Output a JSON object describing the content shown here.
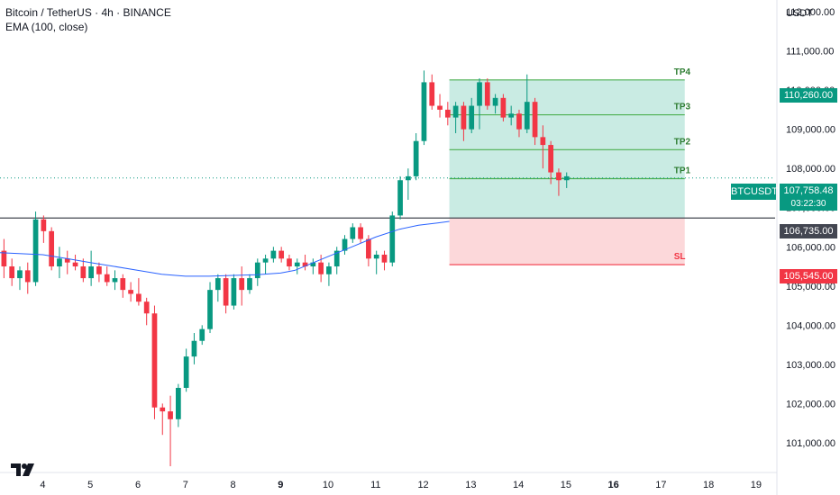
{
  "legend": {
    "title": "Bitcoin / TetherUS · 4h · BINANCE",
    "indicator": "EMA (100, close)"
  },
  "axis": {
    "currency": "USDT"
  },
  "colors": {
    "up": "#089981",
    "down": "#f23645",
    "ema": "#2962ff",
    "target_zone": "#c9ebe3",
    "stop_zone": "#fcd8da",
    "target_line": "#4caf50",
    "stop_line": "#f23645",
    "level_line": "#434651"
  },
  "chart_data": {
    "type": "candlestick",
    "y_ticks": [
      "101,000.00",
      "102,000.00",
      "103,000.00",
      "104,000.00",
      "105,000.00",
      "106,000.00",
      "107,000.00",
      "108,000.00",
      "109,000.00",
      "110,000.00",
      "111,000.00",
      "112,000.00"
    ],
    "y_tick_values": [
      101000,
      102000,
      103000,
      104000,
      105000,
      106000,
      107000,
      108000,
      109000,
      110000,
      111000,
      112000
    ],
    "ylim": [
      100240,
      112300
    ],
    "x_ticks": [
      "4",
      "5",
      "6",
      "7",
      "8",
      "9",
      "10",
      "11",
      "12",
      "13",
      "14",
      "15",
      "16",
      "17",
      "18",
      "19"
    ],
    "x_bold_ticks": [
      "9",
      "16"
    ],
    "x_start_day": 3.1,
    "x_end_day": 19.4,
    "candles_per_day": 6,
    "candles": [
      {
        "o": 105900,
        "h": 106200,
        "l": 105200,
        "c": 105500
      },
      {
        "o": 105500,
        "h": 105700,
        "l": 105000,
        "c": 105200
      },
      {
        "o": 105200,
        "h": 105500,
        "l": 104900,
        "c": 105400
      },
      {
        "o": 105400,
        "h": 105600,
        "l": 104800,
        "c": 105100
      },
      {
        "o": 105100,
        "h": 106900,
        "l": 105000,
        "c": 106700
      },
      {
        "o": 106700,
        "h": 106800,
        "l": 106100,
        "c": 106400
      },
      {
        "o": 106400,
        "h": 106500,
        "l": 105400,
        "c": 105500
      },
      {
        "o": 105500,
        "h": 106000,
        "l": 105200,
        "c": 105700
      },
      {
        "o": 105700,
        "h": 105900,
        "l": 105300,
        "c": 105600
      },
      {
        "o": 105600,
        "h": 105800,
        "l": 105400,
        "c": 105500
      },
      {
        "o": 105500,
        "h": 105700,
        "l": 105100,
        "c": 105200
      },
      {
        "o": 105200,
        "h": 105900,
        "l": 105000,
        "c": 105500
      },
      {
        "o": 105500,
        "h": 105600,
        "l": 105100,
        "c": 105300
      },
      {
        "o": 105300,
        "h": 105500,
        "l": 105000,
        "c": 105100
      },
      {
        "o": 105100,
        "h": 105400,
        "l": 104900,
        "c": 105200
      },
      {
        "o": 105200,
        "h": 105300,
        "l": 104700,
        "c": 104900
      },
      {
        "o": 104900,
        "h": 105100,
        "l": 104600,
        "c": 104800
      },
      {
        "o": 104800,
        "h": 105200,
        "l": 104500,
        "c": 104600
      },
      {
        "o": 104600,
        "h": 104700,
        "l": 104000,
        "c": 104300
      },
      {
        "o": 104300,
        "h": 104500,
        "l": 101600,
        "c": 101900
      },
      {
        "o": 101900,
        "h": 102000,
        "l": 101200,
        "c": 101800
      },
      {
        "o": 101800,
        "h": 102200,
        "l": 100400,
        "c": 101600
      },
      {
        "o": 101600,
        "h": 102500,
        "l": 101400,
        "c": 102400
      },
      {
        "o": 102400,
        "h": 103400,
        "l": 102300,
        "c": 103200
      },
      {
        "o": 103200,
        "h": 103800,
        "l": 103000,
        "c": 103600
      },
      {
        "o": 103600,
        "h": 104000,
        "l": 103500,
        "c": 103900
      },
      {
        "o": 103900,
        "h": 105100,
        "l": 103800,
        "c": 104900
      },
      {
        "o": 104900,
        "h": 105300,
        "l": 104600,
        "c": 105200
      },
      {
        "o": 105200,
        "h": 105300,
        "l": 104300,
        "c": 104500
      },
      {
        "o": 104500,
        "h": 105300,
        "l": 104400,
        "c": 105200
      },
      {
        "o": 105200,
        "h": 105500,
        "l": 104500,
        "c": 104900
      },
      {
        "o": 104900,
        "h": 105300,
        "l": 104800,
        "c": 105200
      },
      {
        "o": 105200,
        "h": 105700,
        "l": 105000,
        "c": 105600
      },
      {
        "o": 105600,
        "h": 105800,
        "l": 105300,
        "c": 105700
      },
      {
        "o": 105700,
        "h": 106000,
        "l": 105600,
        "c": 105900
      },
      {
        "o": 105900,
        "h": 106000,
        "l": 105600,
        "c": 105700
      },
      {
        "o": 105700,
        "h": 105800,
        "l": 105400,
        "c": 105500
      },
      {
        "o": 105500,
        "h": 105700,
        "l": 105300,
        "c": 105600
      },
      {
        "o": 105600,
        "h": 105800,
        "l": 105400,
        "c": 105500
      },
      {
        "o": 105500,
        "h": 105700,
        "l": 105300,
        "c": 105600
      },
      {
        "o": 105600,
        "h": 105800,
        "l": 105100,
        "c": 105300
      },
      {
        "o": 105300,
        "h": 105600,
        "l": 105000,
        "c": 105500
      },
      {
        "o": 105500,
        "h": 106000,
        "l": 105300,
        "c": 105900
      },
      {
        "o": 105900,
        "h": 106300,
        "l": 105800,
        "c": 106200
      },
      {
        "o": 106200,
        "h": 106600,
        "l": 106100,
        "c": 106500
      },
      {
        "o": 106500,
        "h": 106600,
        "l": 106100,
        "c": 106200
      },
      {
        "o": 106200,
        "h": 106300,
        "l": 105500,
        "c": 105700
      },
      {
        "o": 105700,
        "h": 105900,
        "l": 105300,
        "c": 105800
      },
      {
        "o": 105800,
        "h": 105900,
        "l": 105400,
        "c": 105600
      },
      {
        "o": 105600,
        "h": 106900,
        "l": 105500,
        "c": 106800
      },
      {
        "o": 106800,
        "h": 107800,
        "l": 106700,
        "c": 107700
      },
      {
        "o": 107700,
        "h": 108000,
        "l": 107200,
        "c": 107800
      },
      {
        "o": 107800,
        "h": 108900,
        "l": 107700,
        "c": 108700
      },
      {
        "o": 108700,
        "h": 110500,
        "l": 108600,
        "c": 110200
      },
      {
        "o": 110200,
        "h": 110400,
        "l": 109500,
        "c": 109600
      },
      {
        "o": 109600,
        "h": 109900,
        "l": 109300,
        "c": 109500
      },
      {
        "o": 109500,
        "h": 109700,
        "l": 109100,
        "c": 109300
      },
      {
        "o": 109300,
        "h": 109700,
        "l": 108900,
        "c": 109600
      },
      {
        "o": 109600,
        "h": 109700,
        "l": 108700,
        "c": 109000
      },
      {
        "o": 109000,
        "h": 109800,
        "l": 108900,
        "c": 109600
      },
      {
        "o": 109600,
        "h": 110300,
        "l": 109000,
        "c": 110200
      },
      {
        "o": 110200,
        "h": 110300,
        "l": 109500,
        "c": 109600
      },
      {
        "o": 109600,
        "h": 109900,
        "l": 109400,
        "c": 109800
      },
      {
        "o": 109800,
        "h": 109900,
        "l": 109200,
        "c": 109300
      },
      {
        "o": 109300,
        "h": 109600,
        "l": 109100,
        "c": 109400
      },
      {
        "o": 109400,
        "h": 109500,
        "l": 108800,
        "c": 109000
      },
      {
        "o": 109000,
        "h": 110400,
        "l": 108900,
        "c": 109700
      },
      {
        "o": 109700,
        "h": 109800,
        "l": 108600,
        "c": 108800
      },
      {
        "o": 108800,
        "h": 109100,
        "l": 108000,
        "c": 108600
      },
      {
        "o": 108600,
        "h": 108700,
        "l": 107600,
        "c": 107900
      },
      {
        "o": 107900,
        "h": 108000,
        "l": 107300,
        "c": 107700
      },
      {
        "o": 107700,
        "h": 107900,
        "l": 107500,
        "c": 107800
      }
    ],
    "ema": {
      "name": "EMA (100, close)",
      "x": [
        3.1,
        4.0,
        4.5,
        5.0,
        5.5,
        6.0,
        6.5,
        7.0,
        7.5,
        8.0,
        8.5,
        9.0,
        9.3,
        9.6,
        10.0,
        10.5,
        11.0,
        11.5,
        11.9,
        12.3,
        12.55
      ],
      "values": [
        105850,
        105800,
        105700,
        105600,
        105500,
        105400,
        105300,
        105250,
        105250,
        105270,
        105290,
        105330,
        105400,
        105550,
        105750,
        106000,
        106250,
        106450,
        106550,
        106610,
        106650
      ]
    },
    "trade": {
      "x_start": 12.55,
      "x_end": 17.5,
      "entry": 106735,
      "stop": 105545,
      "targets": [
        {
          "label": "TP1",
          "value": 107740
        },
        {
          "label": "TP2",
          "value": 108480
        },
        {
          "label": "TP3",
          "value": 109370
        },
        {
          "label": "TP4",
          "value": 110260
        }
      ],
      "stop_label": "SL"
    },
    "level_line": 106735,
    "last_price": 107758.48
  },
  "price_tags": {
    "tp4": "110,260.00",
    "current_symbol": "BTCUSDT",
    "current_price": "107,758.48",
    "countdown": "03:22:30",
    "level": "106,735.00",
    "stop": "105,545.00"
  }
}
